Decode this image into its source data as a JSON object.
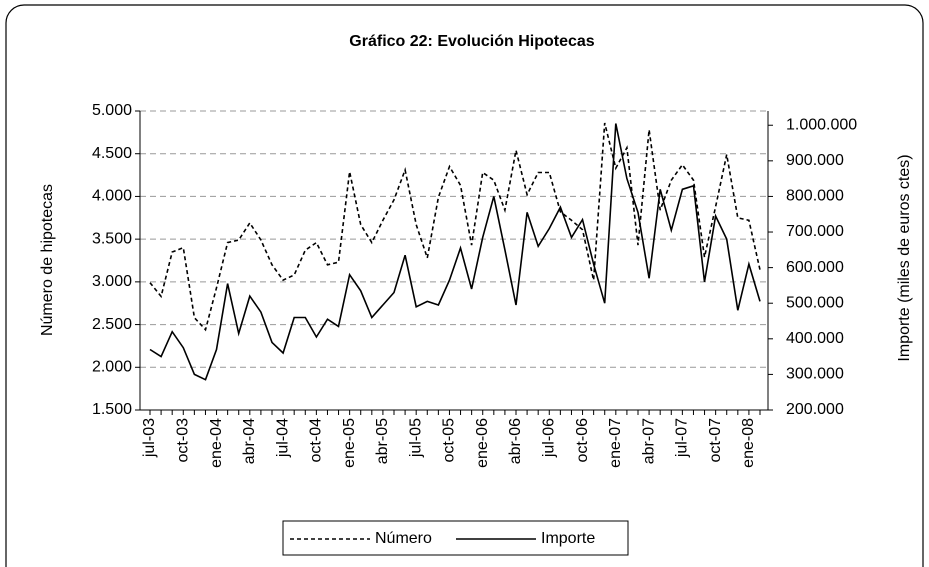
{
  "chart_data": {
    "type": "line",
    "title": "Gráfico 22: Evolución Hipotecas",
    "ylabel": "Número de hipotecas",
    "y2label": "Importe (miles de euros ctes)",
    "categories": [
      "jul-03",
      null,
      null,
      "oct-03",
      null,
      null,
      "ene-04",
      null,
      null,
      "abr-04",
      null,
      null,
      "jul-04",
      null,
      null,
      "oct-04",
      null,
      null,
      "ene-05",
      null,
      null,
      "abr-05",
      null,
      null,
      "jul-05",
      null,
      null,
      "oct-05",
      null,
      null,
      "ene-06",
      null,
      null,
      "abr-06",
      null,
      null,
      "jul-06",
      null,
      null,
      "oct-06",
      null,
      null,
      "ene-07",
      null,
      null,
      "abr-07",
      null,
      null,
      "jul-07",
      null,
      null,
      "oct-07",
      null,
      null,
      "ene-08",
      null
    ],
    "series": [
      {
        "name": "Número",
        "color": "#000000",
        "style": "dashed",
        "axis": "y",
        "values": [
          2990,
          2830,
          3350,
          3400,
          2580,
          2440,
          2930,
          3460,
          3490,
          3690,
          3490,
          3200,
          3020,
          3080,
          3370,
          3460,
          3200,
          3230,
          4290,
          3670,
          3460,
          3720,
          3960,
          4310,
          3670,
          3280,
          3990,
          4350,
          4130,
          3430,
          4280,
          4190,
          3840,
          4540,
          4020,
          4280,
          4280,
          3820,
          3720,
          3610,
          3020,
          4860,
          4330,
          4570,
          3430,
          4780,
          3840,
          4190,
          4370,
          4190,
          3290,
          3880,
          4490,
          3750,
          3720,
          3140
        ]
      },
      {
        "name": "Importe",
        "color": "#000000",
        "style": "solid",
        "axis": "y2",
        "values": [
          370000,
          350000,
          420000,
          375000,
          300000,
          285000,
          370000,
          555000,
          415000,
          520000,
          475000,
          390000,
          360000,
          460000,
          460000,
          405000,
          455000,
          435000,
          580000,
          535000,
          460000,
          495000,
          530000,
          635000,
          490000,
          505000,
          495000,
          565000,
          655000,
          540000,
          685000,
          800000,
          650000,
          495000,
          755000,
          660000,
          710000,
          770000,
          685000,
          735000,
          610000,
          500000,
          1005000,
          850000,
          755000,
          570000,
          820000,
          705000,
          820000,
          830000,
          560000,
          745000,
          680000,
          480000,
          610000,
          505000
        ]
      }
    ],
    "ylim": [
      1500,
      5000
    ],
    "yticks": [
      {
        "value": 1500,
        "label": "1.500"
      },
      {
        "value": 2000,
        "label": "2.000"
      },
      {
        "value": 2500,
        "label": "2.500"
      },
      {
        "value": 3000,
        "label": "3.000"
      },
      {
        "value": 3500,
        "label": "3.500"
      },
      {
        "value": 4000,
        "label": "4.000"
      },
      {
        "value": 4500,
        "label": "4.500"
      },
      {
        "value": 5000,
        "label": "5.000"
      }
    ],
    "y2lim": [
      200000,
      1040000
    ],
    "y2ticks": [
      {
        "value": 200000,
        "label": "200.000"
      },
      {
        "value": 300000,
        "label": "300.000"
      },
      {
        "value": 400000,
        "label": "400.000"
      },
      {
        "value": 500000,
        "label": "500.000"
      },
      {
        "value": 600000,
        "label": "600.000"
      },
      {
        "value": 700000,
        "label": "700.000"
      },
      {
        "value": 800000,
        "label": "800.000"
      },
      {
        "value": 900000,
        "label": "900.000"
      },
      {
        "value": 1000000,
        "label": "1.000.000"
      }
    ],
    "grid": true,
    "legend": "bottom"
  }
}
